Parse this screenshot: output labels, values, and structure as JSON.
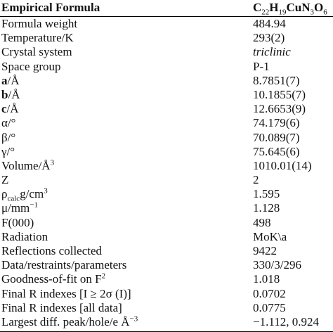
{
  "table": {
    "header": [
      [
        {
          "text": "Empirical Formula",
          "style": "bold"
        }
      ],
      [
        {
          "text": "C",
          "style": "bold"
        },
        {
          "text": "22",
          "style": "sub"
        },
        {
          "text": "H",
          "style": "bold"
        },
        {
          "text": "19",
          "style": "sub"
        },
        {
          "text": "CuN",
          "style": "bold"
        },
        {
          "text": "3",
          "style": "sub"
        },
        {
          "text": "O",
          "style": "bold"
        },
        {
          "text": "6",
          "style": "sub"
        }
      ]
    ],
    "rows": [
      [
        "Formula weight",
        "484.94"
      ],
      [
        "Temperature/K",
        "293(2)"
      ],
      [
        "Crystal system",
        [
          {
            "text": "triclinic",
            "style": "italic"
          }
        ]
      ],
      [
        "Space group",
        "P-1"
      ],
      [
        [
          {
            "text": "a",
            "style": "bold"
          },
          {
            "text": "/Å"
          }
        ],
        "8.7851(7)"
      ],
      [
        [
          {
            "text": "b",
            "style": "bold"
          },
          {
            "text": "/Å"
          }
        ],
        "10.1855(7)"
      ],
      [
        [
          {
            "text": "c",
            "style": "bold"
          },
          {
            "text": "/Å"
          }
        ],
        "12.6653(9)"
      ],
      [
        "α/°",
        "74.179(6)"
      ],
      [
        "β/°",
        "70.089(7)"
      ],
      [
        "γ/°",
        "75.645(6)"
      ],
      [
        [
          {
            "text": "Volume/Å"
          },
          {
            "text": "3",
            "style": "sup"
          }
        ],
        "1010.01(14)"
      ],
      [
        "Z",
        "2"
      ],
      [
        [
          {
            "text": "ρ"
          },
          {
            "text": "calc",
            "style": "sub"
          },
          {
            "text": "g/cm"
          },
          {
            "text": "3",
            "style": "sup"
          }
        ],
        "1.595"
      ],
      [
        [
          {
            "text": "μ/mm"
          },
          {
            "text": "−1",
            "style": "sup"
          }
        ],
        "1.128"
      ],
      [
        "F(000)",
        "498"
      ],
      [
        "Radiation",
        "MoK\\a"
      ],
      [
        "Reflections collected",
        "9422"
      ],
      [
        "Data/restraints/parameters",
        "330/3/296"
      ],
      [
        [
          {
            "text": "Goodness-of-fit on F"
          },
          {
            "text": "2",
            "style": "sup"
          }
        ],
        "1.018"
      ],
      [
        "Final R indexes [I ≥ 2σ (I)]",
        "0.0702"
      ],
      [
        "Final R indexes [all data]",
        "0.0775"
      ],
      [
        [
          {
            "text": "Largest diff. peak/hole/e Å"
          },
          {
            "text": "−3",
            "style": "sup"
          }
        ],
        "−1.112, 0.924"
      ]
    ]
  }
}
